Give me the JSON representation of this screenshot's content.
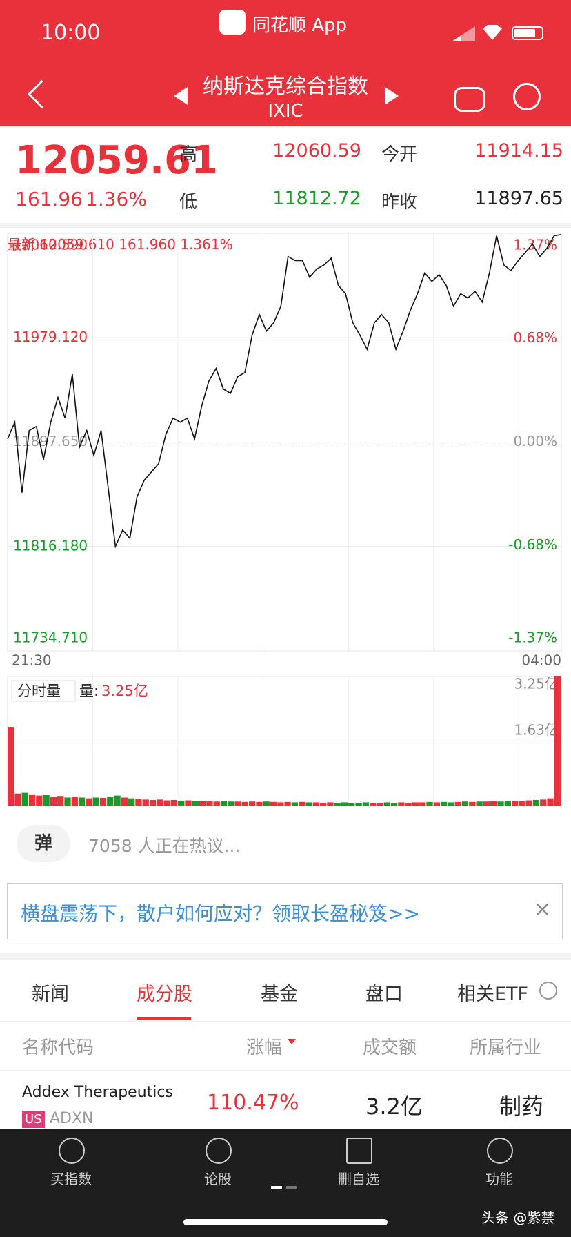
{
  "status_bar": {
    "time": "10:00",
    "app": "同花顺 App"
  },
  "header": {
    "title": "纳斯达克综合指数",
    "code": "IXIC"
  },
  "quote": {
    "price": "12059.61",
    "change": "161.96",
    "change_pct": "1.36%",
    "high_label": "高",
    "high": "12060.59",
    "open_label": "今开",
    "open": "11914.15",
    "low_label": "低",
    "low": "11812.72",
    "prev_close_label": "昨收",
    "prev_close": "11897.65"
  },
  "latest": "最新:12059.610  161.960  1.361%",
  "chart_data": [
    {
      "type": "line",
      "x_labels": [
        "21:30",
        "04:00"
      ],
      "baseline": 11897.65,
      "ylim": [
        11734.71,
        12060.59
      ],
      "yticks": [
        {
          "value": 12060.59,
          "label": "12060.590"
        },
        {
          "value": 11979.12,
          "label": "11979.120"
        },
        {
          "value": 11897.65,
          "label": "11897.650"
        },
        {
          "value": 11816.18,
          "label": "11816.180"
        },
        {
          "value": 11734.71,
          "label": "11734.710"
        }
      ],
      "y2lim": [
        -1.37,
        1.37
      ],
      "y2ticks": [
        {
          "value": 1.37,
          "label": "1.37%"
        },
        {
          "value": 0.68,
          "label": "0.68%"
        },
        {
          "value": 0,
          "label": "0.00%"
        },
        {
          "value": -0.68,
          "label": "-0.68%"
        },
        {
          "value": -1.37,
          "label": "-1.37%"
        }
      ],
      "color": "#111111",
      "values": [
        11900.2,
        11913.2,
        11858.2,
        11906.7,
        11909.9,
        11884.1,
        11913.2,
        11932.6,
        11916.4,
        11950.7,
        11893.8,
        11906.7,
        11887.3,
        11906.7,
        11861.4,
        11816.2,
        11829.1,
        11822.6,
        11855.0,
        11867.9,
        11874.4,
        11880.8,
        11903.5,
        11916.4,
        11913.2,
        11916.4,
        11900.2,
        11926.1,
        11945.5,
        11955.2,
        11939.0,
        11935.8,
        11948.7,
        11952.0,
        11981.1,
        11997.2,
        11984.3,
        11990.8,
        12003.7,
        12042.5,
        12039.3,
        12039.3,
        12026.3,
        12032.8,
        12036.0,
        12041.2,
        12019.9,
        12013.4,
        11990.8,
        11981.1,
        11970.1,
        11990.8,
        11997.2,
        11990.8,
        11970.1,
        11984.3,
        12000.5,
        12013.4,
        12029.6,
        12023.1,
        12028.3,
        12019.9,
        12003.7,
        12013.4,
        12010.1,
        12015.3,
        12006.9,
        12029.6,
        12058.7,
        12036.0,
        12031.5,
        12039.3,
        12045.8,
        12052.2,
        12042.5,
        12049.0,
        12058.7,
        12059.61
      ]
    },
    {
      "type": "bar",
      "title": "分时量",
      "current_prefix": "量:",
      "current_label": "3.25亿",
      "ylim": [
        0,
        3.25
      ],
      "yticks": [
        {
          "value": 3.25,
          "label": "3.25亿"
        },
        {
          "value": 1.63,
          "label": "1.63亿"
        }
      ],
      "up_color": "#e8313a",
      "down_color": "#1a9a2a",
      "values": [
        1.98,
        0.3,
        0.32,
        0.28,
        0.25,
        0.27,
        0.22,
        0.24,
        0.2,
        0.22,
        0.2,
        0.18,
        0.2,
        0.19,
        0.22,
        0.25,
        0.2,
        0.18,
        0.16,
        0.15,
        0.14,
        0.15,
        0.13,
        0.14,
        0.12,
        0.13,
        0.12,
        0.11,
        0.12,
        0.1,
        0.11,
        0.1,
        0.1,
        0.09,
        0.1,
        0.09,
        0.1,
        0.09,
        0.08,
        0.09,
        0.08,
        0.09,
        0.08,
        0.08,
        0.07,
        0.08,
        0.07,
        0.08,
        0.07,
        0.07,
        0.08,
        0.07,
        0.07,
        0.08,
        0.07,
        0.08,
        0.07,
        0.08,
        0.08,
        0.09,
        0.08,
        0.09,
        0.08,
        0.09,
        0.1,
        0.09,
        0.1,
        0.1,
        0.11,
        0.1,
        0.11,
        0.12,
        0.12,
        0.13,
        0.14,
        0.15,
        0.18,
        3.25
      ]
    }
  ],
  "comments": {
    "button": "弹",
    "text": "7058 人正在热议..."
  },
  "banner": {
    "text": "横盘震荡下，散户如何应对？领取长盈秘笈>>",
    "close": "×"
  },
  "tabs": [
    "新闻",
    "成分股",
    "基金",
    "盘口",
    "相关ETF"
  ],
  "table": {
    "columns": [
      "名称代码",
      "涨幅",
      "成交额",
      "所属行业"
    ],
    "rows": [
      {
        "name": "Addex Therapeutics",
        "market": "US",
        "code": "ADXN",
        "change": "110.47%",
        "amount": "3.2亿",
        "industry": "制药"
      }
    ]
  },
  "nav": [
    "买指数",
    "论股",
    "删自选",
    "功能"
  ],
  "watermark": "头条 @紫禁"
}
